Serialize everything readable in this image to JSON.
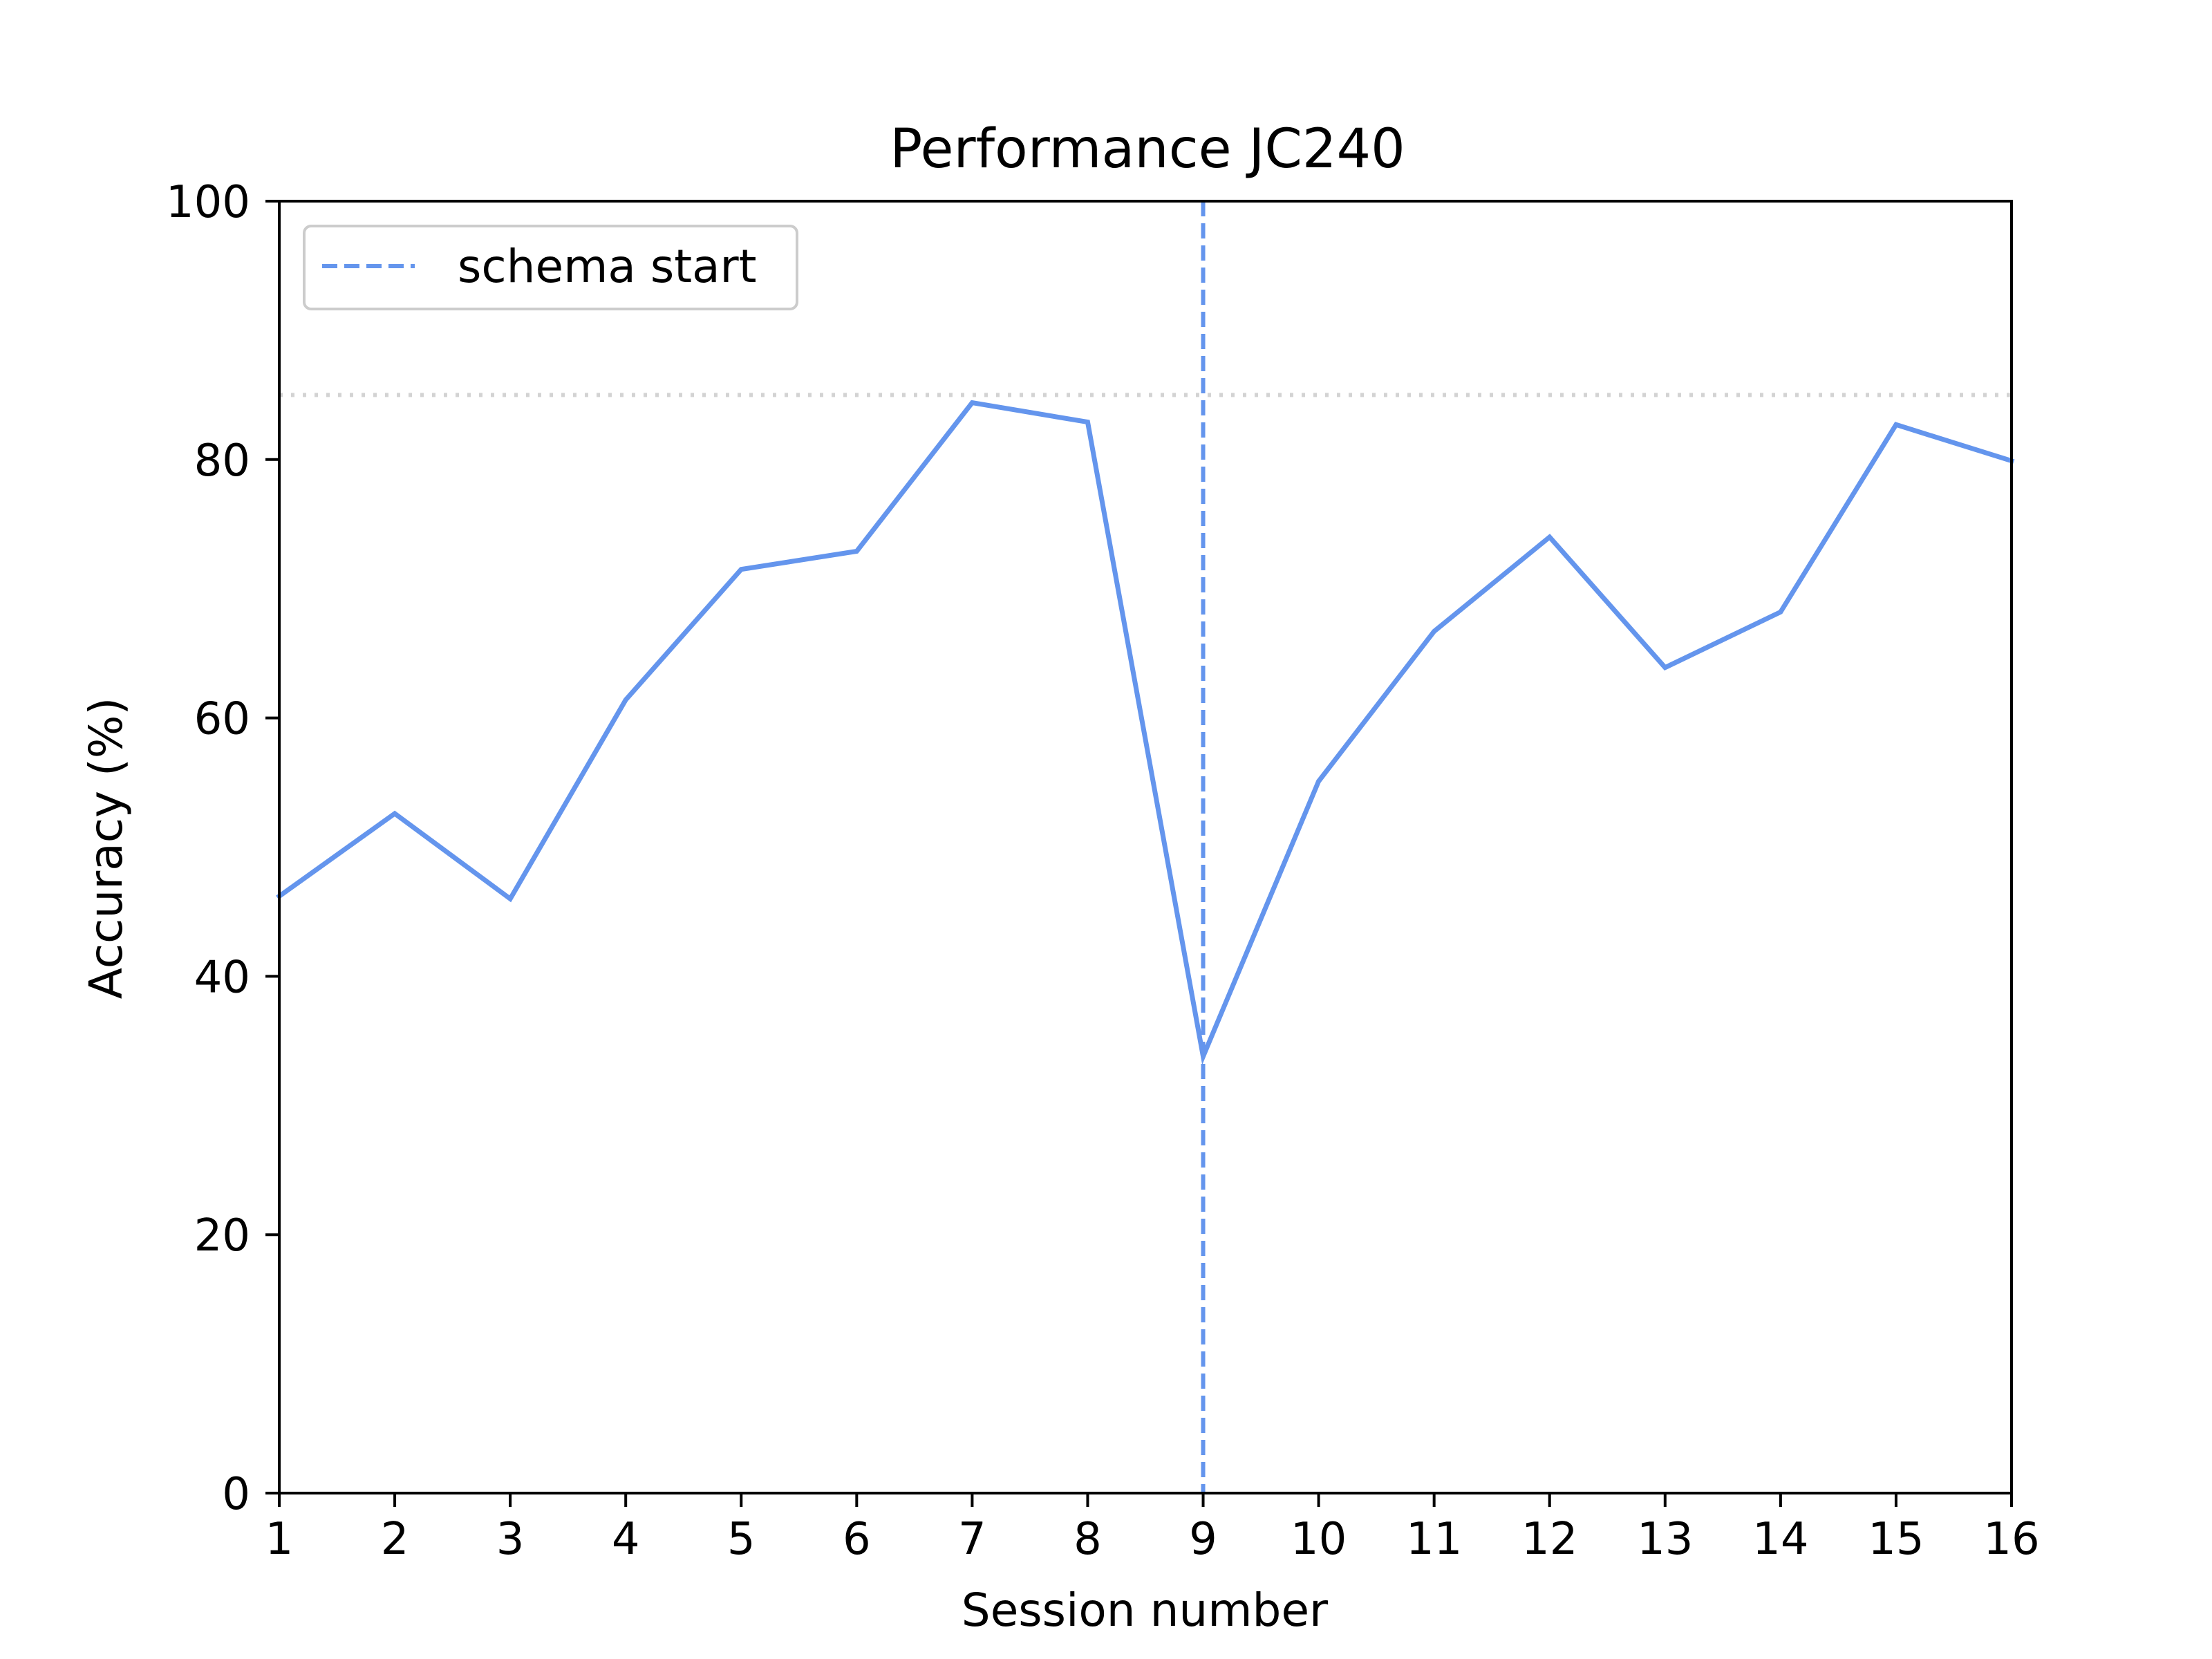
{
  "chart_data": {
    "type": "line",
    "title": "Performance JC240",
    "xlabel": "Session number",
    "ylabel": "Accuracy (%)",
    "x": [
      1,
      2,
      3,
      4,
      5,
      6,
      7,
      8,
      9,
      10,
      11,
      12,
      13,
      14,
      15,
      16
    ],
    "series": [
      {
        "values": [
          46.2,
          52.6,
          46.0,
          61.4,
          71.5,
          72.9,
          84.4,
          82.9,
          33.8,
          55.1,
          66.7,
          74.0,
          63.9,
          68.2,
          82.7,
          79.9
        ],
        "color": "#6495ED"
      }
    ],
    "xlim": [
      1,
      16
    ],
    "ylim": [
      0,
      100
    ],
    "x_ticks": [
      "1",
      "2",
      "3",
      "4",
      "5",
      "6",
      "7",
      "8",
      "9",
      "10",
      "11",
      "12",
      "13",
      "14",
      "15",
      "16"
    ],
    "y_ticks": [
      "0",
      "20",
      "40",
      "60",
      "80",
      "100"
    ],
    "reference_lines": [
      {
        "orientation": "vertical",
        "x": 9,
        "style": "dashed",
        "color": "#6495ED",
        "label": "schema start"
      },
      {
        "orientation": "horizontal",
        "y": 85,
        "style": "dotted",
        "color": "#D3D3D3"
      }
    ],
    "legend": {
      "position": "top-left",
      "entries": [
        "schema start"
      ]
    },
    "grid": false
  }
}
